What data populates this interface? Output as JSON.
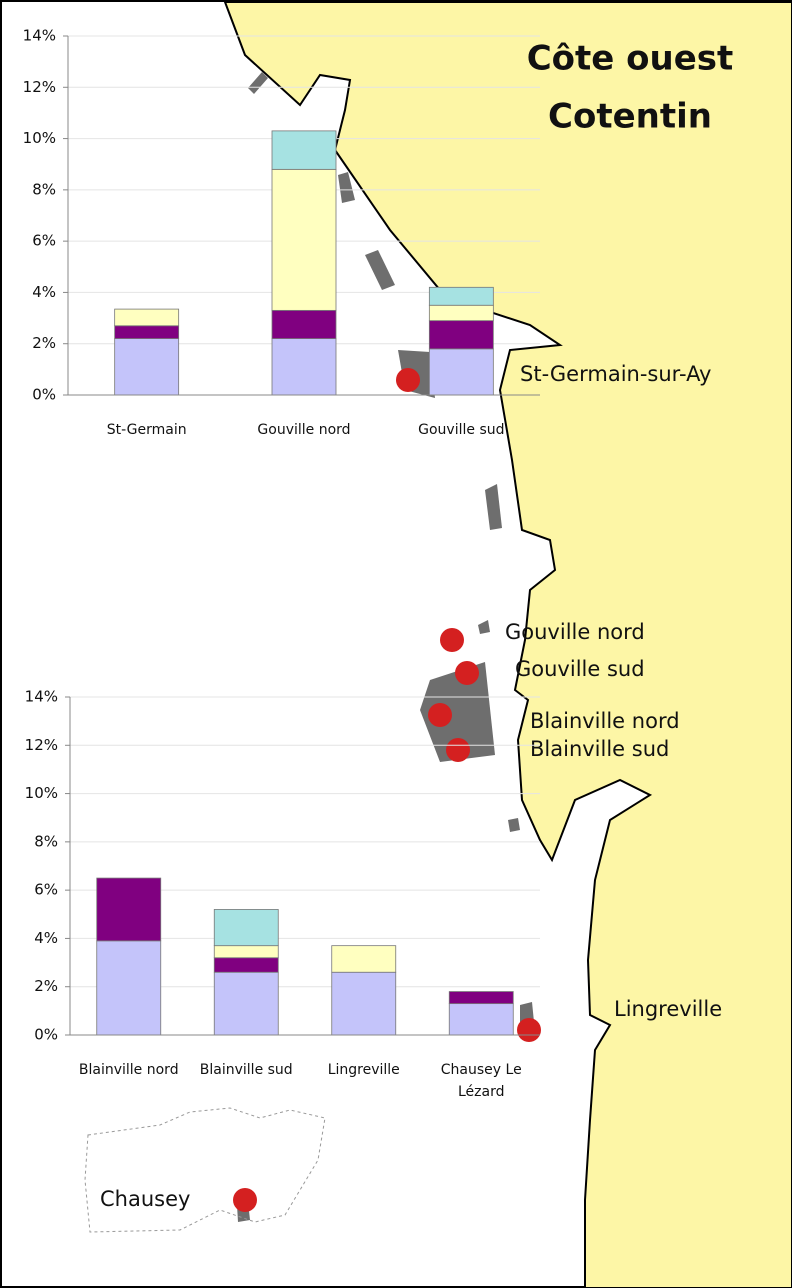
{
  "map": {
    "title": [
      "Côte ouest",
      "Cotentin"
    ],
    "places": [
      "St-Germain-sur-Ay",
      "Gouville nord",
      "Gouville sud",
      "Blainville nord",
      "Blainville sud",
      "Lingreville",
      "Chausey"
    ]
  },
  "chart_data": [
    {
      "type": "bar",
      "stacked": true,
      "categories": [
        "St-Germain",
        "Gouville nord",
        "Gouville sud"
      ],
      "series": [
        {
          "color": "#c4c4fa",
          "values": [
            2.2,
            2.2,
            1.8
          ]
        },
        {
          "color": "#800080",
          "values": [
            0.5,
            1.1,
            1.1
          ]
        },
        {
          "color": "#ffffc0",
          "values": [
            0.65,
            5.5,
            0.6
          ]
        },
        {
          "color": "#a6e2e2",
          "values": [
            0,
            1.5,
            0.7
          ]
        }
      ],
      "ylim": [
        0,
        14
      ],
      "yticks": [
        {
          "value": 0,
          "label": "0%"
        },
        {
          "value": 2,
          "label": "2%"
        },
        {
          "value": 4,
          "label": "4%"
        },
        {
          "value": 6,
          "label": "6%"
        },
        {
          "value": 8,
          "label": "8%"
        },
        {
          "value": 10,
          "label": "10%"
        },
        {
          "value": 12,
          "label": "12%"
        },
        {
          "value": 14,
          "label": "14%"
        }
      ],
      "grid": true
    },
    {
      "type": "bar",
      "stacked": true,
      "categories": [
        "Blainville nord",
        "Blainville sud",
        "Lingreville",
        "Chausey Le Lézard"
      ],
      "series": [
        {
          "color": "#c4c4fa",
          "values": [
            3.9,
            2.6,
            2.6,
            1.3
          ]
        },
        {
          "color": "#800080",
          "values": [
            2.6,
            0.6,
            0,
            0.5
          ]
        },
        {
          "color": "#ffffc0",
          "values": [
            0,
            0.5,
            1.1,
            0
          ]
        },
        {
          "color": "#a6e2e2",
          "values": [
            0,
            1.5,
            0,
            0
          ]
        }
      ],
      "ylim": [
        0,
        14
      ],
      "yticks": [
        {
          "value": 0,
          "label": "0%"
        },
        {
          "value": 2,
          "label": "2%"
        },
        {
          "value": 4,
          "label": "4%"
        },
        {
          "value": 6,
          "label": "6%"
        },
        {
          "value": 8,
          "label": "8%"
        },
        {
          "value": 10,
          "label": "10%"
        },
        {
          "value": 12,
          "label": "12%"
        },
        {
          "value": 14,
          "label": "14%"
        }
      ],
      "grid": true
    }
  ]
}
